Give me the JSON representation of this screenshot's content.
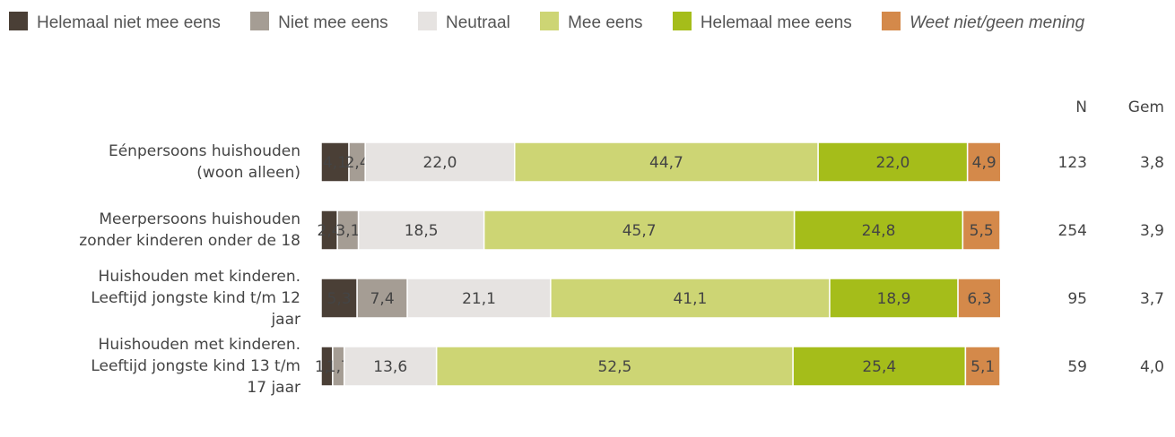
{
  "chart_data": {
    "type": "stacked-bar-horizontal",
    "categories": [
      [
        "Eénpersoons huishouden",
        "(woon alleen)"
      ],
      [
        "Meerpersoons huishouden",
        "zonder kinderen onder de 18"
      ],
      [
        "Huishouden met kinderen.",
        "Leeftijd jongste kind t/m 12",
        "jaar"
      ],
      [
        "Huishouden met kinderen.",
        "Leeftijd jongste kind 13 t/m",
        "17 jaar"
      ]
    ],
    "xlim": [
      0,
      100
    ],
    "series": [
      {
        "name": "Helemaal niet mee eens",
        "color": "#4a3f36",
        "values": [
          4.1,
          2.4,
          5.3,
          1.7
        ],
        "value_labels": [
          "4,1",
          "2,4",
          "5,3",
          "1,7"
        ]
      },
      {
        "name": "Niet mee eens",
        "color": "#a59d94",
        "values": [
          2.4,
          3.1,
          7.4,
          1.7
        ],
        "value_labels": [
          "2,4",
          "3,1",
          "7,4",
          "1,7"
        ]
      },
      {
        "name": "Neutraal",
        "color": "#e6e3e1",
        "values": [
          22.0,
          18.5,
          21.1,
          13.6
        ],
        "value_labels": [
          "22,0",
          "18,5",
          "21,1",
          "13,6"
        ]
      },
      {
        "name": "Mee eens",
        "color": "#cdd574",
        "values": [
          44.7,
          45.7,
          41.1,
          52.5
        ],
        "value_labels": [
          "44,7",
          "45,7",
          "41,1",
          "52,5"
        ]
      },
      {
        "name": "Helemaal mee eens",
        "color": "#a5bd1a",
        "values": [
          22.0,
          24.8,
          18.9,
          25.4
        ],
        "value_labels": [
          "22,0",
          "24,8",
          "18,9",
          "25,4"
        ]
      },
      {
        "name": "Weet niet/geen mening",
        "color": "#d4894a",
        "values": [
          4.9,
          5.5,
          6.3,
          5.1
        ],
        "value_labels": [
          "4,9",
          "5,5",
          "6,3",
          "5,1"
        ]
      }
    ],
    "columns": [
      {
        "name": "N",
        "values": [
          123,
          254,
          95,
          59
        ]
      },
      {
        "name": "Gem",
        "values": [
          3.8,
          3.9,
          3.7,
          4.0
        ],
        "value_labels": [
          "3,8",
          "3,9",
          "3,7",
          "4,0"
        ]
      }
    ]
  }
}
